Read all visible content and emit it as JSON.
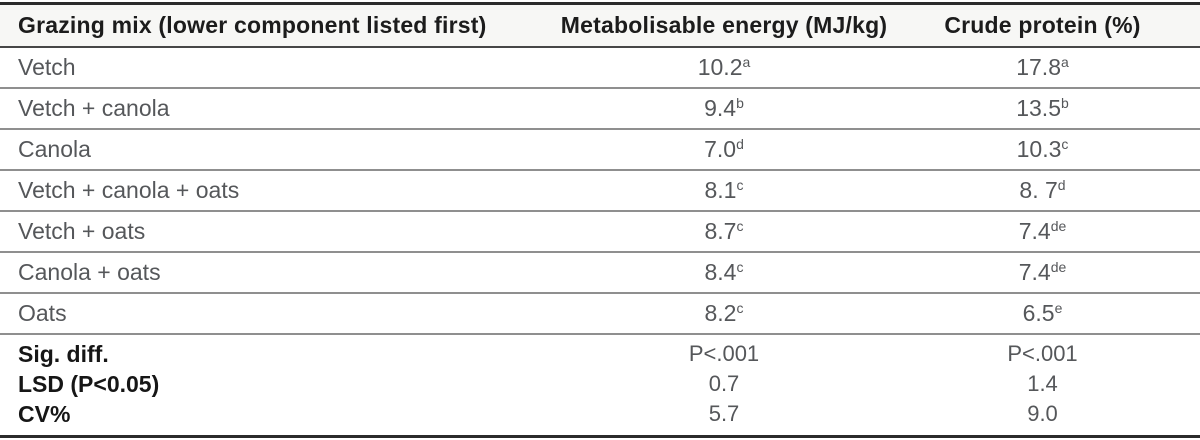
{
  "table": {
    "columns": {
      "mix": "Grazing mix (lower component listed first)",
      "me": "Metabolisable energy (MJ/kg)",
      "cp": "Crude protein (%)"
    },
    "rows": [
      {
        "mix": "Vetch",
        "me": "10.2",
        "me_sup": "a",
        "cp": "17.8",
        "cp_sup": "a"
      },
      {
        "mix": "Vetch + canola",
        "me": "9.4",
        "me_sup": "b",
        "cp": "13.5",
        "cp_sup": "b"
      },
      {
        "mix": "Canola",
        "me": "7.0",
        "me_sup": "d",
        "cp": "10.3",
        "cp_sup": "c"
      },
      {
        "mix": "Vetch + canola + oats",
        "me": "8.1",
        "me_sup": "c",
        "cp": "8. 7",
        "cp_sup": "d"
      },
      {
        "mix": "Vetch + oats",
        "me": "8.7",
        "me_sup": "c",
        "cp": "7.4",
        "cp_sup": "de"
      },
      {
        "mix": "Canola + oats",
        "me": "8.4",
        "me_sup": "c",
        "cp": "7.4",
        "cp_sup": "de"
      },
      {
        "mix": "Oats",
        "me": "8.2",
        "me_sup": "c",
        "cp": "6.5",
        "cp_sup": "e"
      }
    ],
    "stats": [
      {
        "label": "Sig. diff.",
        "me": "P<.001",
        "cp": "P<.001"
      },
      {
        "label": "LSD (P<0.05)",
        "me": "0.7",
        "cp": "1.4"
      },
      {
        "label": "CV%",
        "me": "5.7",
        "cp": "9.0"
      }
    ],
    "colors": {
      "border_dark": "#2b2b2b",
      "header_underline": "#474747",
      "row_separator": "#8f8f8f",
      "header_text": "#1c1c1c",
      "body_text": "#55575a"
    }
  }
}
